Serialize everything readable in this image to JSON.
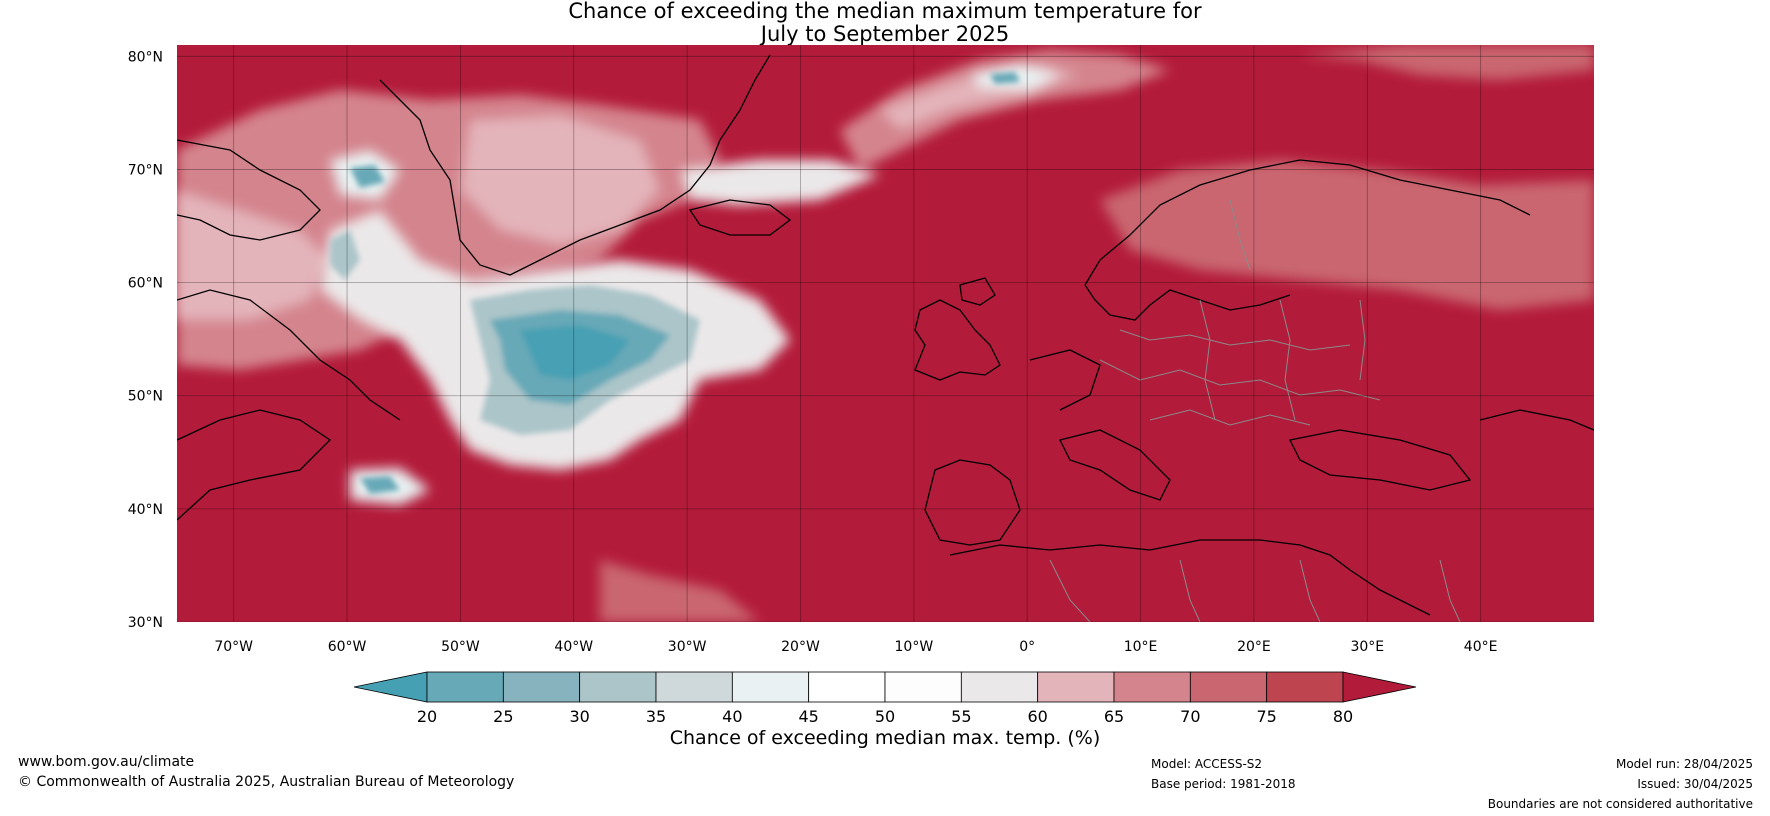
{
  "title_line1": "Chance of exceeding the median maximum temperature for",
  "title_line2": "July to September 2025",
  "map": {
    "lat_labels": [
      "80°N",
      "70°N",
      "60°N",
      "50°N",
      "40°N",
      "30°N"
    ],
    "lon_labels": [
      "70°W",
      "60°W",
      "50°W",
      "40°W",
      "30°W",
      "20°W",
      "10°W",
      "0°",
      "10°E",
      "20°E",
      "30°E",
      "40°E"
    ],
    "lon_range": [
      -75,
      50
    ],
    "lat_range": [
      30,
      81
    ]
  },
  "colorbar": {
    "title": "Chance of exceeding median max. temp. (%)",
    "ticks": [
      "20",
      "25",
      "30",
      "35",
      "40",
      "45",
      "50",
      "55",
      "60",
      "65",
      "70",
      "75",
      "80"
    ],
    "colors": {
      "under": "#46a0b4",
      "bins": [
        "#68a9b7",
        "#87b3be",
        "#abc5c9",
        "#cfd9dc",
        "#e9f1f2",
        "#ffffff",
        "#fdfdfd",
        "#ebe8e9",
        "#e3b4ba",
        "#d4848d",
        "#c96670",
        "#be4450"
      ],
      "over": "#b31b3a"
    }
  },
  "footer": {
    "website": "www.bom.gov.au/climate",
    "copyright": "© Commonwealth of Australia 2025, Australian Bureau of Meteorology",
    "model": "Model: ACCESS-S2",
    "base_period": "Base period: 1981-2018",
    "model_run": "Model run: 28/04/2025",
    "issued": "Issued: 30/04/2025",
    "disclaimer": "Boundaries are not considered authoritative"
  }
}
